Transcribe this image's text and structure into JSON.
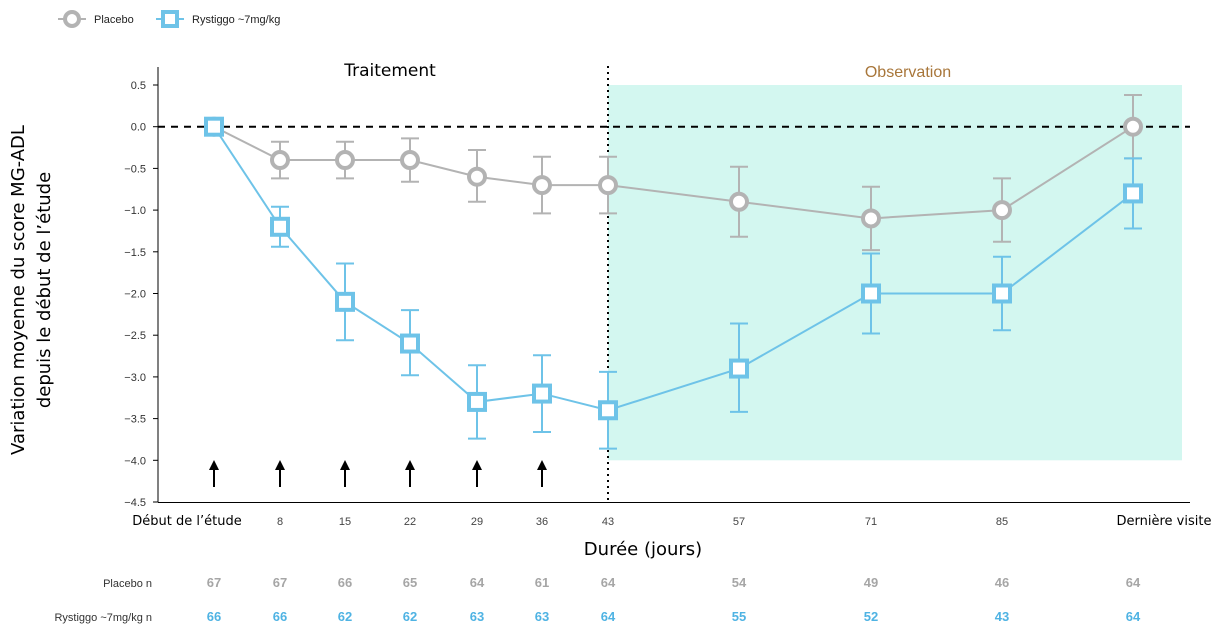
{
  "chart_data": {
    "type": "line",
    "x_categories": [
      "Début de l’étude",
      "8",
      "15",
      "22",
      "29",
      "36",
      "43",
      "57",
      "71",
      "85",
      "Dernière visite"
    ],
    "xlabel": "Durée (jours)",
    "ylabel_line1": "Variation moyenne du score MG-ADL",
    "ylabel_line2": "depuis le début de l’étude",
    "ylim": [
      -4.5,
      0.5
    ],
    "yticks": [
      "0.5",
      "0.0",
      "−0.5",
      "−1.0",
      "−1.5",
      "−2.0",
      "−2.5",
      "−3.0",
      "−3.5",
      "−4.0",
      "−4.5"
    ],
    "ytick_values": [
      0.5,
      0.0,
      -0.5,
      -1.0,
      -1.5,
      -2.0,
      -2.5,
      -3.0,
      -3.5,
      -4.0,
      -4.5
    ],
    "reference_line_y": 0.0,
    "treatment_label": "Traitement",
    "observation_label": "Observation",
    "dosing_arrow_count": 6,
    "series": [
      {
        "name": "Placebo",
        "color": "#b3b3b3",
        "marker": "circle",
        "values": [
          0.0,
          -0.4,
          -0.4,
          -0.4,
          -0.6,
          -0.7,
          -0.7,
          -0.9,
          -1.1,
          -1.0,
          0.0
        ],
        "error_low": [
          0.0,
          -0.62,
          -0.62,
          -0.66,
          -0.9,
          -1.04,
          -1.04,
          -1.32,
          -1.48,
          -1.38,
          -0.38
        ],
        "error_high": [
          0.0,
          -0.18,
          -0.18,
          -0.14,
          -0.28,
          -0.36,
          -0.36,
          -0.48,
          -0.72,
          -0.62,
          0.38
        ]
      },
      {
        "name": "Rystiggo ~7mg/kg",
        "color": "#6ec3e8",
        "marker": "square",
        "values": [
          0.0,
          -1.2,
          -2.1,
          -2.6,
          -3.3,
          -3.2,
          -3.4,
          -2.9,
          -2.0,
          -2.0,
          -0.8
        ],
        "error_low": [
          0.0,
          -1.44,
          -2.56,
          -2.98,
          -3.74,
          -3.66,
          -3.86,
          -3.42,
          -2.48,
          -2.44,
          -1.22
        ],
        "error_high": [
          0.0,
          -0.96,
          -1.64,
          -2.2,
          -2.86,
          -2.74,
          -2.94,
          -2.36,
          -1.52,
          -1.56,
          -0.38
        ]
      }
    ],
    "n_table": {
      "rows": [
        {
          "label": "Placebo n",
          "color": "#a6a6a6",
          "values": [
            "67",
            "67",
            "66",
            "65",
            "64",
            "61",
            "64",
            "54",
            "49",
            "46",
            "64"
          ]
        },
        {
          "label": "Rystiggo ~7mg/kg n",
          "color": "#4fb3e3",
          "values": [
            "66",
            "66",
            "62",
            "62",
            "63",
            "63",
            "64",
            "55",
            "52",
            "43",
            "64"
          ]
        }
      ]
    },
    "colors": {
      "observation_shade": "#d3f7f0",
      "placebo": "#b3b3b3",
      "rystiggo": "#6ec3e8",
      "observation_text": "#a8763a"
    },
    "legend_position": "top-left"
  }
}
